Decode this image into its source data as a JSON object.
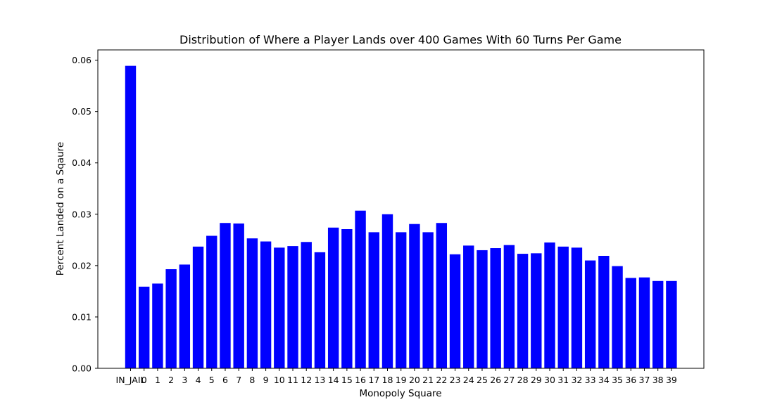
{
  "chart_data": {
    "type": "bar",
    "title": "Distribution of Where a Player Lands over 400 Games With 60 Turns Per Game",
    "xlabel": "Monopoly Square",
    "ylabel": "Percent Landed on a Sqaure",
    "categories": [
      "IN_JAIL",
      "0",
      "1",
      "2",
      "3",
      "4",
      "5",
      "6",
      "7",
      "8",
      "9",
      "10",
      "11",
      "12",
      "13",
      "14",
      "15",
      "16",
      "17",
      "18",
      "19",
      "20",
      "21",
      "22",
      "23",
      "24",
      "25",
      "26",
      "27",
      "28",
      "29",
      "30",
      "31",
      "32",
      "33",
      "34",
      "35",
      "36",
      "37",
      "38",
      "39"
    ],
    "values": [
      0.0589,
      0.0159,
      0.0165,
      0.0193,
      0.0202,
      0.0237,
      0.0258,
      0.0283,
      0.0282,
      0.0253,
      0.0247,
      0.0235,
      0.0238,
      0.0246,
      0.0226,
      0.0274,
      0.0271,
      0.0307,
      0.0265,
      0.03,
      0.0265,
      0.0281,
      0.0265,
      0.0283,
      0.0222,
      0.0239,
      0.023,
      0.0234,
      0.024,
      0.0223,
      0.0224,
      0.0245,
      0.0237,
      0.0235,
      0.021,
      0.0219,
      0.0199,
      0.0176,
      0.0177,
      0.017,
      0.017
    ],
    "yticks": [
      "0.00",
      "0.01",
      "0.02",
      "0.03",
      "0.04",
      "0.05",
      "0.06"
    ],
    "ylim": [
      0,
      0.062
    ],
    "bar_color": "#0000ff",
    "grid": false
  }
}
